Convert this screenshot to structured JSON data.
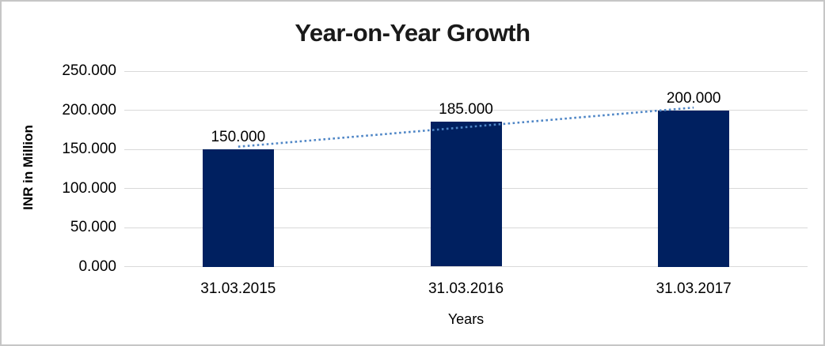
{
  "window": {
    "background": "#ffffff",
    "frame_border_color": "#c6c6c6"
  },
  "chart_data": {
    "type": "bar",
    "title": "Year-on-Year Growth",
    "xlabel": "Years",
    "ylabel": "INR in Million",
    "categories": [
      "31.03.2015",
      "31.03.2016",
      "31.03.2017"
    ],
    "values": [
      150,
      185,
      200
    ],
    "value_labels": [
      "150.000",
      "185.000",
      "200.000"
    ],
    "ytick_labels": [
      "0.000",
      "50.000",
      "100.000",
      "150.000",
      "200.000",
      "250.000"
    ],
    "ylim": [
      0,
      250
    ],
    "grid": true,
    "legend": "none",
    "bar_color": "#002060",
    "gridline_color": "#d9d9d9",
    "title_color": "#1a1a1a",
    "text_color": "#000000",
    "trendline": {
      "type": "linear",
      "style": "dotted",
      "color": "#4f86c6",
      "fit_values": [
        153.333,
        178.333,
        203.333
      ]
    }
  }
}
